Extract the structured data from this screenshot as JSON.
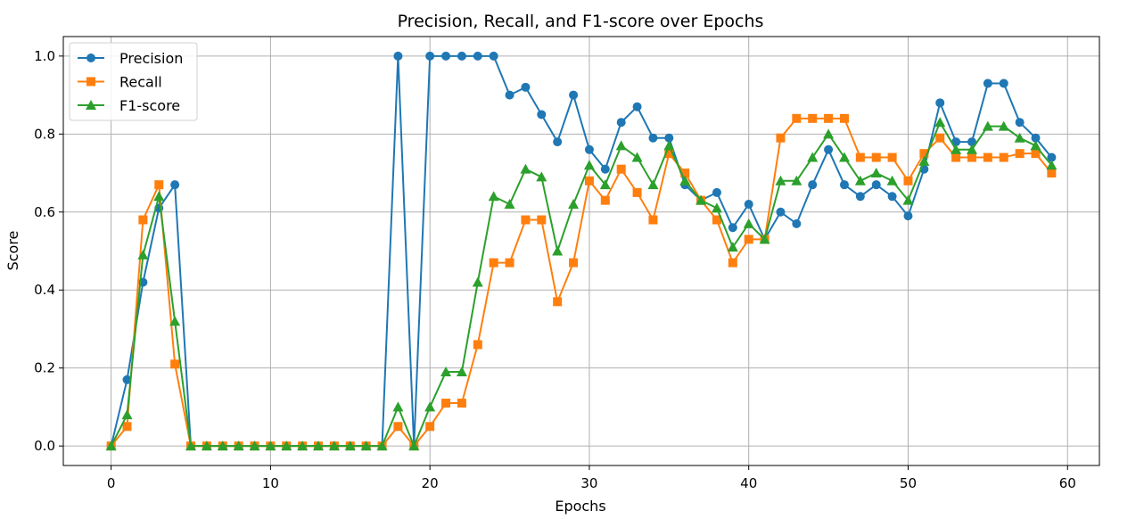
{
  "chart_data": {
    "type": "line",
    "title": "Precision, Recall, and F1-score over Epochs",
    "xlabel": "Epochs",
    "ylabel": "Score",
    "xlim": [
      -3,
      62
    ],
    "ylim": [
      -0.05,
      1.05
    ],
    "xticks": [
      0,
      10,
      20,
      30,
      40,
      50,
      60
    ],
    "yticks": [
      0.0,
      0.2,
      0.4,
      0.6,
      0.8,
      1.0
    ],
    "xtick_labels": [
      "0",
      "10",
      "20",
      "30",
      "40",
      "50",
      "60"
    ],
    "ytick_labels": [
      "0.0",
      "0.2",
      "0.4",
      "0.6",
      "0.8",
      "1.0"
    ],
    "grid": true,
    "legend_position": "top-left",
    "x": [
      0,
      1,
      2,
      3,
      4,
      5,
      6,
      7,
      8,
      9,
      10,
      11,
      12,
      13,
      14,
      15,
      16,
      17,
      18,
      19,
      20,
      21,
      22,
      23,
      24,
      25,
      26,
      27,
      28,
      29,
      30,
      31,
      32,
      33,
      34,
      35,
      36,
      37,
      38,
      39,
      40,
      41,
      42,
      43,
      44,
      45,
      46,
      47,
      48,
      49,
      50,
      51,
      52,
      53,
      54,
      55,
      56,
      57,
      58,
      59
    ],
    "series": [
      {
        "name": "Precision",
        "color": "#1f77b4",
        "marker": "circle",
        "values": [
          0.0,
          0.17,
          0.42,
          0.61,
          0.67,
          0.0,
          0.0,
          0.0,
          0.0,
          0.0,
          0.0,
          0.0,
          0.0,
          0.0,
          0.0,
          0.0,
          0.0,
          0.0,
          1.0,
          0.0,
          1.0,
          1.0,
          1.0,
          1.0,
          1.0,
          0.9,
          0.92,
          0.85,
          0.78,
          0.9,
          0.76,
          0.71,
          0.83,
          0.87,
          0.79,
          0.79,
          0.67,
          0.63,
          0.65,
          0.56,
          0.62,
          0.53,
          0.6,
          0.57,
          0.67,
          0.76,
          0.67,
          0.64,
          0.67,
          0.64,
          0.59,
          0.71,
          0.88,
          0.78,
          0.78,
          0.93,
          0.93,
          0.83,
          0.79,
          0.74
        ]
      },
      {
        "name": "Recall",
        "color": "#ff7f0e",
        "marker": "square",
        "values": [
          0.0,
          0.05,
          0.58,
          0.67,
          0.21,
          0.0,
          0.0,
          0.0,
          0.0,
          0.0,
          0.0,
          0.0,
          0.0,
          0.0,
          0.0,
          0.0,
          0.0,
          0.0,
          0.05,
          0.0,
          0.05,
          0.11,
          0.11,
          0.26,
          0.47,
          0.47,
          0.58,
          0.58,
          0.37,
          0.47,
          0.68,
          0.63,
          0.71,
          0.65,
          0.58,
          0.75,
          0.7,
          0.63,
          0.58,
          0.47,
          0.53,
          0.53,
          0.79,
          0.84,
          0.84,
          0.84,
          0.84,
          0.74,
          0.74,
          0.74,
          0.68,
          0.75,
          0.79,
          0.74,
          0.74,
          0.74,
          0.74,
          0.75,
          0.75,
          0.7
        ]
      },
      {
        "name": "F1-score",
        "color": "#2ca02c",
        "marker": "triangle",
        "values": [
          0.0,
          0.08,
          0.49,
          0.64,
          0.32,
          0.0,
          0.0,
          0.0,
          0.0,
          0.0,
          0.0,
          0.0,
          0.0,
          0.0,
          0.0,
          0.0,
          0.0,
          0.0,
          0.1,
          0.0,
          0.1,
          0.19,
          0.19,
          0.42,
          0.64,
          0.62,
          0.71,
          0.69,
          0.5,
          0.62,
          0.72,
          0.67,
          0.77,
          0.74,
          0.67,
          0.77,
          0.68,
          0.63,
          0.61,
          0.51,
          0.57,
          0.53,
          0.68,
          0.68,
          0.74,
          0.8,
          0.74,
          0.68,
          0.7,
          0.68,
          0.63,
          0.73,
          0.83,
          0.76,
          0.76,
          0.82,
          0.82,
          0.79,
          0.77,
          0.72
        ]
      }
    ]
  }
}
